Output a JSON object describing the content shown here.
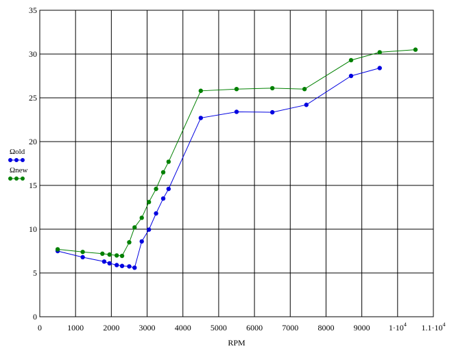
{
  "chart_data": {
    "type": "line",
    "title": "",
    "xlabel": "RPM",
    "ylabel": "",
    "xlim": [
      0,
      11000
    ],
    "ylim": [
      0,
      35
    ],
    "grid": true,
    "legend_placement": "left",
    "x_ticks": [
      0,
      1000,
      2000,
      3000,
      4000,
      5000,
      6000,
      7000,
      8000,
      9000,
      10000,
      11000
    ],
    "x_tick_labels": [
      "0",
      "1000",
      "2000",
      "3000",
      "4000",
      "5000",
      "6000",
      "7000",
      "8000",
      "9000",
      "1·10",
      "1.1·10"
    ],
    "x_tick_label_exponents": [
      "",
      "",
      "",
      "",
      "",
      "",
      "",
      "",
      "",
      "",
      "4",
      "4"
    ],
    "y_ticks": [
      0,
      5,
      10,
      15,
      20,
      25,
      30,
      35
    ],
    "y_tick_labels": [
      "0",
      "5",
      "10",
      "15",
      "20",
      "25",
      "30",
      "35"
    ],
    "series": [
      {
        "name": "Ωold",
        "color": "#0000e0",
        "x": [
          500,
          1200,
          1800,
          1950,
          2150,
          2300,
          2500,
          2650,
          2850,
          3050,
          3250,
          3450,
          3600,
          4500,
          5500,
          6500,
          7450,
          8700,
          9500
        ],
        "y": [
          7.5,
          6.8,
          6.3,
          6.1,
          5.9,
          5.8,
          5.75,
          5.6,
          8.6,
          9.95,
          11.8,
          13.5,
          14.6,
          22.7,
          23.4,
          23.35,
          24.2,
          27.5,
          28.4
        ]
      },
      {
        "name": "Ωnew",
        "color": "#008000",
        "x": [
          500,
          1200,
          1750,
          1950,
          2150,
          2300,
          2500,
          2650,
          2850,
          3050,
          3250,
          3450,
          3600,
          4500,
          5500,
          6500,
          7400,
          8700,
          9500,
          10500
        ],
        "y": [
          7.7,
          7.4,
          7.2,
          7.1,
          7.0,
          6.95,
          8.5,
          10.2,
          11.3,
          13.1,
          14.6,
          16.5,
          17.7,
          25.8,
          26.0,
          26.1,
          26.0,
          29.3,
          30.2,
          30.5
        ]
      }
    ]
  }
}
